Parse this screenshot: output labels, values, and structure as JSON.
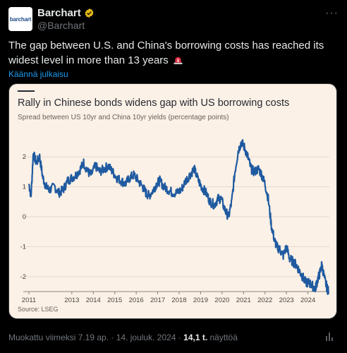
{
  "account": {
    "name": "Barchart",
    "handle": "@Barchart",
    "avatar_text": "barchart"
  },
  "tweet": {
    "text": "The gap between U.S. and China's borrowing costs has reached its widest level in more than 13 years",
    "emoji": "rotating-light-emoji",
    "translate_link": "Käännä julkaisu"
  },
  "footer": {
    "edited": "Muokattu viimeksi 7.19 ap. · 14. jouluk. 2024 · ",
    "views_count": "14,1 t.",
    "views_label": " näyttöä"
  },
  "colors": {
    "accent": "#1d9bf0",
    "card_background": "#fcf1e6",
    "line": "#1f5aa0"
  },
  "chart_data": {
    "type": "line",
    "title": "Rally in Chinese bonds widens gap with US borrowing costs",
    "subtitle": "Spread between US 10yr and China 10yr yields (percentage points)",
    "source": "Source: LSEG",
    "x_ticks": [
      "2011",
      "2013",
      "2014",
      "2015",
      "2016",
      "2017",
      "2018",
      "2019",
      "2020",
      "2021",
      "2022",
      "2023",
      "2024"
    ],
    "y_ticks": [
      "2",
      "1",
      "0",
      "-1",
      "-2"
    ],
    "ylim": [
      -2.5,
      2.5
    ],
    "grid": true,
    "series": [
      {
        "values": [
          [
            2011.0,
            1.1
          ],
          [
            2011.1,
            0.7
          ],
          [
            2011.2,
            2.1
          ],
          [
            2011.35,
            1.8
          ],
          [
            2011.5,
            2.0
          ],
          [
            2011.65,
            1.3
          ],
          [
            2011.8,
            1.0
          ],
          [
            2011.95,
            0.9
          ],
          [
            2012.2,
            1.0
          ],
          [
            2012.4,
            0.8
          ],
          [
            2012.6,
            0.9
          ],
          [
            2012.8,
            1.2
          ],
          [
            2013.0,
            1.3
          ],
          [
            2013.2,
            1.4
          ],
          [
            2013.4,
            1.6
          ],
          [
            2013.55,
            1.8
          ],
          [
            2013.75,
            1.5
          ],
          [
            2013.9,
            1.4
          ],
          [
            2014.1,
            1.7
          ],
          [
            2014.3,
            1.5
          ],
          [
            2014.5,
            1.6
          ],
          [
            2014.7,
            1.7
          ],
          [
            2014.9,
            1.5
          ],
          [
            2015.1,
            1.3
          ],
          [
            2015.3,
            1.2
          ],
          [
            2015.5,
            1.1
          ],
          [
            2015.7,
            1.3
          ],
          [
            2015.9,
            1.4
          ],
          [
            2016.1,
            1.2
          ],
          [
            2016.3,
            1.0
          ],
          [
            2016.45,
            0.8
          ],
          [
            2016.6,
            0.7
          ],
          [
            2016.8,
            0.9
          ],
          [
            2016.95,
            1.1
          ],
          [
            2017.1,
            1.2
          ],
          [
            2017.3,
            1.0
          ],
          [
            2017.5,
            0.9
          ],
          [
            2017.7,
            0.8
          ],
          [
            2017.9,
            0.8
          ],
          [
            2018.1,
            0.9
          ],
          [
            2018.3,
            1.2
          ],
          [
            2018.5,
            1.4
          ],
          [
            2018.7,
            1.6
          ],
          [
            2018.9,
            1.2
          ],
          [
            2019.05,
            1.0
          ],
          [
            2019.25,
            0.8
          ],
          [
            2019.45,
            0.5
          ],
          [
            2019.65,
            0.4
          ],
          [
            2019.8,
            0.6
          ],
          [
            2019.95,
            0.6
          ],
          [
            2020.15,
            0.2
          ],
          [
            2020.3,
            0.0
          ],
          [
            2020.45,
            0.5
          ],
          [
            2020.6,
            1.5
          ],
          [
            2020.75,
            2.2
          ],
          [
            2020.9,
            2.5
          ],
          [
            2021.05,
            2.3
          ],
          [
            2021.2,
            2.0
          ],
          [
            2021.35,
            1.6
          ],
          [
            2021.5,
            1.5
          ],
          [
            2021.7,
            1.6
          ],
          [
            2021.85,
            1.4
          ],
          [
            2022.0,
            1.1
          ],
          [
            2022.15,
            0.6
          ],
          [
            2022.3,
            -0.3
          ],
          [
            2022.45,
            -0.8
          ],
          [
            2022.55,
            -1.0
          ],
          [
            2022.7,
            -1.1
          ],
          [
            2022.85,
            -1.3
          ],
          [
            2023.0,
            -1.0
          ],
          [
            2023.15,
            -1.4
          ],
          [
            2023.3,
            -1.5
          ],
          [
            2023.45,
            -1.6
          ],
          [
            2023.6,
            -1.8
          ],
          [
            2023.75,
            -2.0
          ],
          [
            2023.9,
            -2.2
          ],
          [
            2024.05,
            -2.2
          ],
          [
            2024.2,
            -2.3
          ],
          [
            2024.35,
            -2.4
          ],
          [
            2024.45,
            -2.1
          ],
          [
            2024.55,
            -1.9
          ],
          [
            2024.65,
            -1.6
          ],
          [
            2024.78,
            -2.1
          ],
          [
            2024.9,
            -2.4
          ],
          [
            2024.96,
            -2.5
          ]
        ]
      }
    ]
  }
}
